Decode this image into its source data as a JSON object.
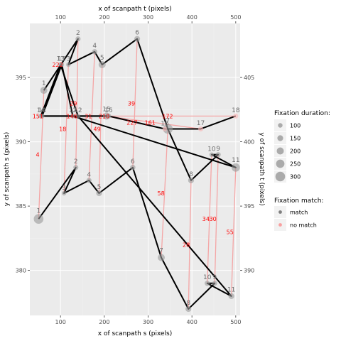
{
  "chart_data": {
    "type": "scatter",
    "bottom_axis": {
      "label": "x of scanpath s (pixels)",
      "range": [
        30,
        510
      ],
      "ticks": [
        100,
        200,
        300,
        400,
        500
      ]
    },
    "top_axis": {
      "label": "x of scanpath t (pixels)",
      "range": [
        30,
        510
      ],
      "ticks": [
        100,
        200,
        300,
        400,
        500
      ]
    },
    "left_axis": {
      "label": "y of scanpath s (pixels)",
      "range": [
        376.5,
        399.2
      ],
      "ticks": [
        380,
        385,
        390,
        395
      ]
    },
    "right_axis": {
      "label": "y of scanpath t (pixels)",
      "range": [
        386.5,
        409.2
      ],
      "ticks": [
        390,
        395,
        400,
        405
      ]
    },
    "grid": true,
    "scanpath_s": [
      {
        "label": "1",
        "x": 50,
        "y": 384,
        "duration": 300
      },
      {
        "label": "2",
        "x": 135,
        "y": 388,
        "duration": 120
      },
      {
        "label": "3",
        "x": 108,
        "y": 386,
        "duration": 100
      },
      {
        "label": "4",
        "x": 165,
        "y": 387,
        "duration": 120
      },
      {
        "label": "5",
        "x": 188,
        "y": 386,
        "duration": 150
      },
      {
        "label": "6",
        "x": 265,
        "y": 388,
        "duration": 130
      },
      {
        "label": "7",
        "x": 330,
        "y": 381,
        "duration": 200
      },
      {
        "label": "8",
        "x": 392,
        "y": 377,
        "duration": 150
      },
      {
        "label": "9",
        "x": 452,
        "y": 379,
        "duration": 120
      },
      {
        "label": "10",
        "x": 435,
        "y": 379,
        "duration": 130
      },
      {
        "label": "11",
        "x": 490,
        "y": 378,
        "duration": 150
      },
      {
        "label": "12",
        "x": 140,
        "y": 392,
        "duration": 100
      },
      {
        "label": "13",
        "x": 100,
        "y": 396,
        "duration": 100
      },
      {
        "label": "14",
        "x": 55,
        "y": 392,
        "duration": 100
      },
      {
        "label": "15",
        "x": 205,
        "y": 392,
        "duration": 200
      }
    ],
    "scanpath_t": [
      {
        "label": "1",
        "x": 62,
        "y": 404,
        "duration": 200
      },
      {
        "label": "2",
        "x": 140,
        "y": 408,
        "duration": 120
      },
      {
        "label": "3",
        "x": 118,
        "y": 406,
        "duration": 100
      },
      {
        "label": "4",
        "x": 178,
        "y": 407,
        "duration": 130
      },
      {
        "label": "5",
        "x": 195,
        "y": 406,
        "duration": 200
      },
      {
        "label": "6",
        "x": 275,
        "y": 408,
        "duration": 150
      },
      {
        "label": "7",
        "x": 345,
        "y": 401,
        "duration": 300
      },
      {
        "label": "8",
        "x": 398,
        "y": 397,
        "duration": 150
      },
      {
        "label": "9",
        "x": 460,
        "y": 399,
        "duration": 120
      },
      {
        "label": "10",
        "x": 445,
        "y": 399,
        "duration": 100
      },
      {
        "label": "11",
        "x": 500,
        "y": 398,
        "duration": 250
      },
      {
        "label": "12",
        "x": 128,
        "y": 402,
        "duration": 100
      },
      {
        "label": "13",
        "x": 103,
        "y": 406,
        "duration": 100
      },
      {
        "label": "14",
        "x": 58,
        "y": 402,
        "duration": 100
      },
      {
        "label": "15",
        "x": 210,
        "y": 402,
        "duration": 120
      },
      {
        "label": "16",
        "x": 338,
        "y": 401,
        "duration": 100
      },
      {
        "label": "17",
        "x": 420,
        "y": 401,
        "duration": 120
      },
      {
        "label": "18",
        "x": 500,
        "y": 402,
        "duration": 120
      }
    ],
    "matches": [
      {
        "s": 1,
        "t": 1,
        "distance": "4"
      },
      {
        "s": 2,
        "t": 2,
        "distance": "29"
      },
      {
        "s": 3,
        "t": 3,
        "distance": "18"
      },
      {
        "s": 4,
        "t": 4,
        "distance": "31"
      },
      {
        "s": 5,
        "t": 5,
        "distance": "49"
      },
      {
        "s": 6,
        "t": 6,
        "distance": "39"
      },
      {
        "s": 7,
        "t": 7,
        "distance": "58"
      },
      {
        "s": 8,
        "t": 8,
        "distance": "28"
      },
      {
        "s": 9,
        "t": 9,
        "distance": "30"
      },
      {
        "s": 10,
        "t": 10,
        "distance": "34"
      },
      {
        "s": 11,
        "t": 11,
        "distance": "55"
      },
      {
        "s": 12,
        "t": 12,
        "distance": "146"
      },
      {
        "s": 13,
        "t": 13,
        "distance": "222"
      },
      {
        "s": 14,
        "t": 14,
        "distance": "151"
      },
      {
        "s": 15,
        "t": 15,
        "distance": "210"
      },
      {
        "s": 15,
        "t": 16,
        "distance": "227"
      },
      {
        "s": 15,
        "t": 17,
        "distance": "161"
      },
      {
        "s": 15,
        "t": 18,
        "distance": "172"
      }
    ],
    "legend_size": {
      "title": "Fixation duration:",
      "entries": [
        {
          "label": "100",
          "value": 100
        },
        {
          "label": "150",
          "value": 150
        },
        {
          "label": "200",
          "value": 200
        },
        {
          "label": "250",
          "value": 250
        },
        {
          "label": "300",
          "value": 300
        }
      ]
    },
    "legend_match": {
      "title": "Fixation match:",
      "entries": [
        {
          "label": "match",
          "color": "#7f7f7f"
        },
        {
          "label": "no match",
          "color": "#f8a0a0"
        }
      ]
    },
    "colors": {
      "panel": "#ebebeb",
      "grid_major": "#ffffff",
      "grid_minor": "#f3f3f3",
      "path": "#000000",
      "fixation": "#999999",
      "match_line": "#f4a6a6",
      "distance_text": "#ff0000",
      "nomatch_point": "#f8b4b4"
    }
  }
}
